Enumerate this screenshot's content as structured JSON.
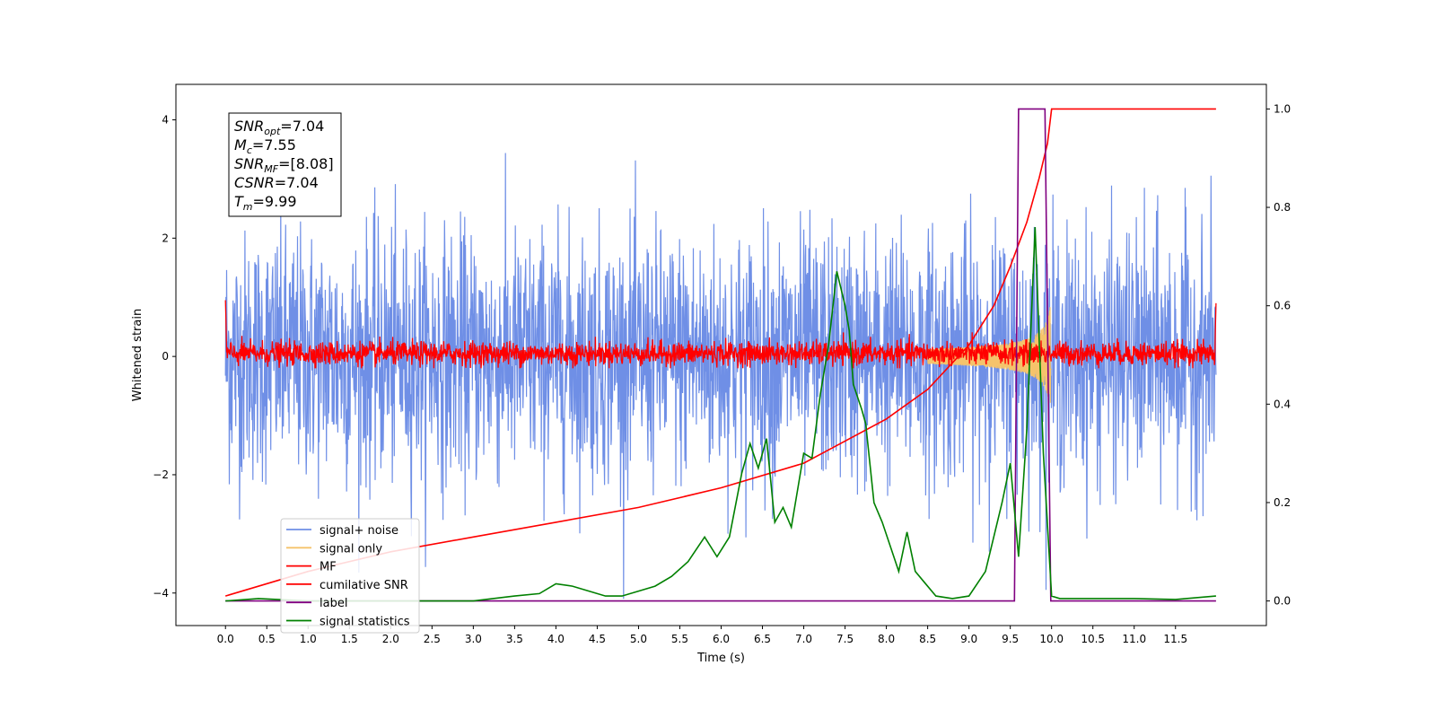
{
  "chart_data": {
    "type": "line",
    "xlabel": "Time (s)",
    "ylabel": "Whitened strain",
    "xlim": [
      -0.6,
      12.6
    ],
    "ylim": [
      -4.55,
      4.6
    ],
    "y2lim": [
      -0.05,
      1.05
    ],
    "x_ticks": [
      "0.0",
      "0.5",
      "1.0",
      "1.5",
      "2.0",
      "2.5",
      "3.0",
      "3.5",
      "4.0",
      "4.5",
      "5.0",
      "5.5",
      "6.0",
      "6.5",
      "7.0",
      "7.5",
      "8.0",
      "8.5",
      "9.0",
      "9.5",
      "10.0",
      "10.5",
      "11.0",
      "11.5"
    ],
    "y_ticks": [
      "4",
      "2",
      "0",
      "−2",
      "−4"
    ],
    "y2_ticks": [
      "1.0",
      "0.8",
      "0.6",
      "0.4",
      "0.2",
      "0.0"
    ],
    "annotation": [
      "SNR_opt=7.04",
      "M_c=7.55",
      "SNR_MF=[8.08]",
      "CSNR=7.04",
      "T_m=9.99"
    ],
    "legend_position": "lower-left",
    "series": [
      {
        "name": "signal+ noise",
        "color": "#6f8fe6",
        "kind": "noise",
        "x_range": [
          0,
          11.99
        ],
        "amplitude_std": 1.0,
        "y_range": [
          -4.1,
          4.2
        ]
      },
      {
        "name": "signal only",
        "color": "#f5c36b",
        "kind": "chirp",
        "x_range": [
          8.5,
          10.0
        ],
        "peak_amplitude": 0.85,
        "peak_time": 9.99
      },
      {
        "name": "MF",
        "color": "#ff0000",
        "kind": "noise",
        "x_range": [
          0,
          11.99
        ],
        "amplitude_std": 0.1,
        "y_range": [
          -0.2,
          1.0
        ]
      },
      {
        "name": "cumilative SNR",
        "color": "#ff0000",
        "axis": "right",
        "x": [
          0.0,
          1.0,
          2.0,
          3.0,
          4.0,
          5.0,
          6.0,
          7.0,
          8.0,
          8.5,
          9.0,
          9.3,
          9.5,
          9.7,
          9.85,
          9.95,
          10.0,
          11.99
        ],
        "y": [
          0.01,
          0.06,
          0.1,
          0.13,
          0.16,
          0.19,
          0.23,
          0.28,
          0.37,
          0.43,
          0.52,
          0.6,
          0.68,
          0.77,
          0.86,
          0.93,
          1.0,
          1.0
        ]
      },
      {
        "name": "label",
        "color": "#800080",
        "axis": "right",
        "x": [
          0.0,
          9.55,
          9.6,
          9.92,
          9.99,
          11.99
        ],
        "y": [
          0.0,
          0.0,
          1.0,
          1.0,
          0.0,
          0.0
        ]
      },
      {
        "name": "signal statistics",
        "color": "#008000",
        "axis": "right",
        "x": [
          0.0,
          0.4,
          1.0,
          2.0,
          3.0,
          3.5,
          3.8,
          4.0,
          4.2,
          4.4,
          4.6,
          4.8,
          5.0,
          5.2,
          5.4,
          5.6,
          5.8,
          5.95,
          6.1,
          6.25,
          6.35,
          6.45,
          6.55,
          6.65,
          6.75,
          6.85,
          7.0,
          7.1,
          7.2,
          7.3,
          7.4,
          7.5,
          7.55,
          7.6,
          7.7,
          7.75,
          7.85,
          7.95,
          8.05,
          8.15,
          8.25,
          8.35,
          8.45,
          8.6,
          8.8,
          9.0,
          9.2,
          9.4,
          9.5,
          9.6,
          9.7,
          9.8,
          9.9,
          10.0,
          10.1,
          10.5,
          11.0,
          11.5,
          11.99
        ],
        "y": [
          0.0,
          0.005,
          0.0,
          0.0,
          0.0,
          0.01,
          0.015,
          0.035,
          0.03,
          0.02,
          0.01,
          0.01,
          0.02,
          0.03,
          0.05,
          0.08,
          0.13,
          0.09,
          0.13,
          0.26,
          0.32,
          0.27,
          0.33,
          0.16,
          0.19,
          0.15,
          0.3,
          0.29,
          0.42,
          0.52,
          0.67,
          0.6,
          0.55,
          0.44,
          0.39,
          0.36,
          0.2,
          0.16,
          0.11,
          0.06,
          0.14,
          0.06,
          0.04,
          0.01,
          0.005,
          0.01,
          0.06,
          0.2,
          0.28,
          0.09,
          0.35,
          0.76,
          0.3,
          0.01,
          0.005,
          0.005,
          0.005,
          0.003,
          0.01
        ]
      }
    ]
  }
}
